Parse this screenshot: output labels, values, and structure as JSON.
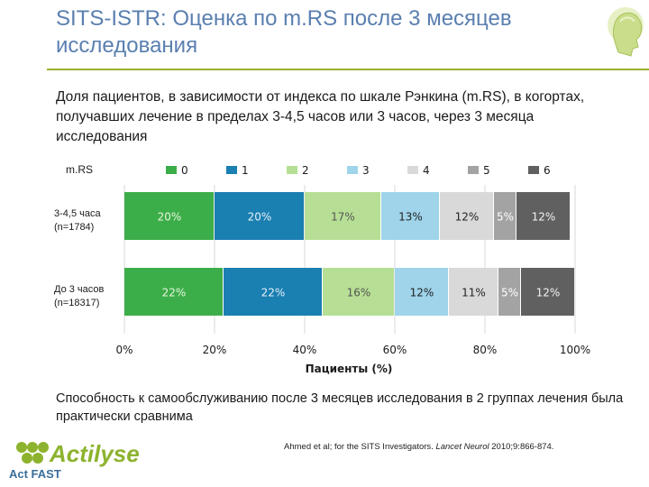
{
  "slide": {
    "title": "SITS-ISTR: Оценка по m.RS после 3 месяцев исследования",
    "subtitle": "Доля пациентов, в зависимости от индекса по шкале Рэнкина (m.RS), в когортах, получавших лечение в пределах 3-4,5 часов или 3 часов, через 3 месяца исследования",
    "conclusion": "Способность к самообслуживанию после 3 месяцев исследования в 2 группах лечения была практически сравнима",
    "citation_authors": "Ahmed et al; for the SITS Investigators. ",
    "citation_journal": "Lancet Neurol",
    "citation_rest": " 2010;9:866-874.",
    "brand_name": "Actilyse",
    "brand_tagline": "Act FAST"
  },
  "chart_data": {
    "type": "bar",
    "orientation": "horizontal",
    "stacked": true,
    "legend_title": "m.RS",
    "legend_position": "top",
    "xlabel": "Пациенты (%)",
    "xlim": [
      0,
      100
    ],
    "xticks": [
      "0%",
      "20%",
      "40%",
      "60%",
      "80%",
      "100%"
    ],
    "categories": [
      {
        "label1": "3-4,5 часа",
        "label2": "(n=1784)"
      },
      {
        "label1": "До 3 часов",
        "label2": "(n=18317)"
      }
    ],
    "series": [
      {
        "name": "0",
        "color": "#3cae49",
        "label_color": "#e8f5e0",
        "values": [
          20,
          22
        ]
      },
      {
        "name": "1",
        "color": "#1a7fb1",
        "label_color": "#e5f1f8",
        "values": [
          20,
          22
        ]
      },
      {
        "name": "2",
        "color": "#b6df95",
        "label_color": "#555555",
        "values": [
          17,
          16
        ]
      },
      {
        "name": "3",
        "color": "#9fd4ea",
        "label_color": "#222222",
        "values": [
          13,
          12
        ]
      },
      {
        "name": "4",
        "color": "#d9d9d9",
        "label_color": "#222222",
        "values": [
          12,
          11
        ]
      },
      {
        "name": "5",
        "color": "#a3a3a3",
        "label_color": "#ffffff",
        "values": [
          5,
          5
        ]
      },
      {
        "name": "6",
        "color": "#606060",
        "label_color": "#f2f2f2",
        "values": [
          12,
          12
        ]
      }
    ]
  }
}
